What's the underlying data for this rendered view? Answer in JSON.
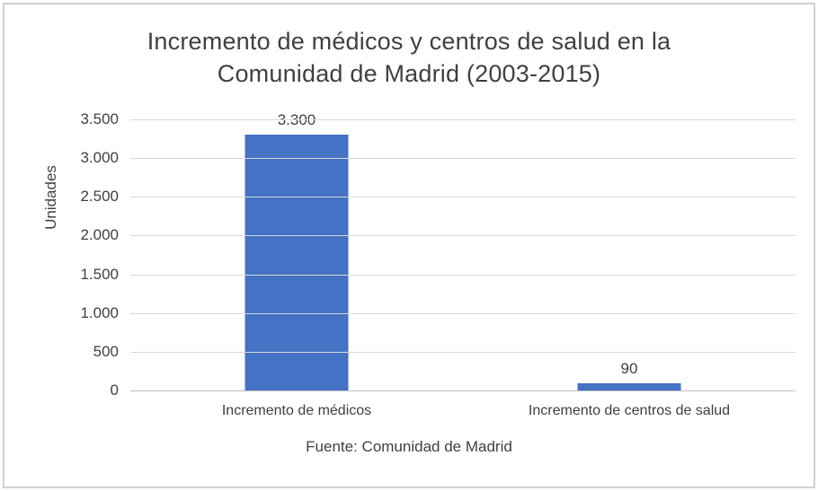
{
  "chart_data": {
    "type": "bar",
    "title": "Incremento de médicos y centros de salud en la Comunidad de Madrid (2003-2015)",
    "title_lines": [
      "Incremento de médicos y centros de salud en la",
      "Comunidad de Madrid (2003-2015)"
    ],
    "ylabel": "Unidades",
    "xlabel": "",
    "caption": "Fuente: Comunidad de Madrid",
    "categories": [
      "Incremento de médicos",
      "Incremento de centros de salud"
    ],
    "values": [
      3300,
      90
    ],
    "value_labels": [
      "3.300",
      "90"
    ],
    "ylim": [
      0,
      3500
    ],
    "yticks": [
      {
        "value": 0,
        "label": "0"
      },
      {
        "value": 500,
        "label": "500"
      },
      {
        "value": 1000,
        "label": "1.000"
      },
      {
        "value": 1500,
        "label": "1.500"
      },
      {
        "value": 2000,
        "label": "2.000"
      },
      {
        "value": 2500,
        "label": "2.500"
      },
      {
        "value": 3000,
        "label": "3.000"
      },
      {
        "value": 3500,
        "label": "3.500"
      }
    ],
    "grid": true,
    "legend": false,
    "colors": {
      "bar": "#4472C4",
      "gridline": "#D9D9D9",
      "axis_line": "#BFBFBF",
      "text": "#404040"
    }
  }
}
